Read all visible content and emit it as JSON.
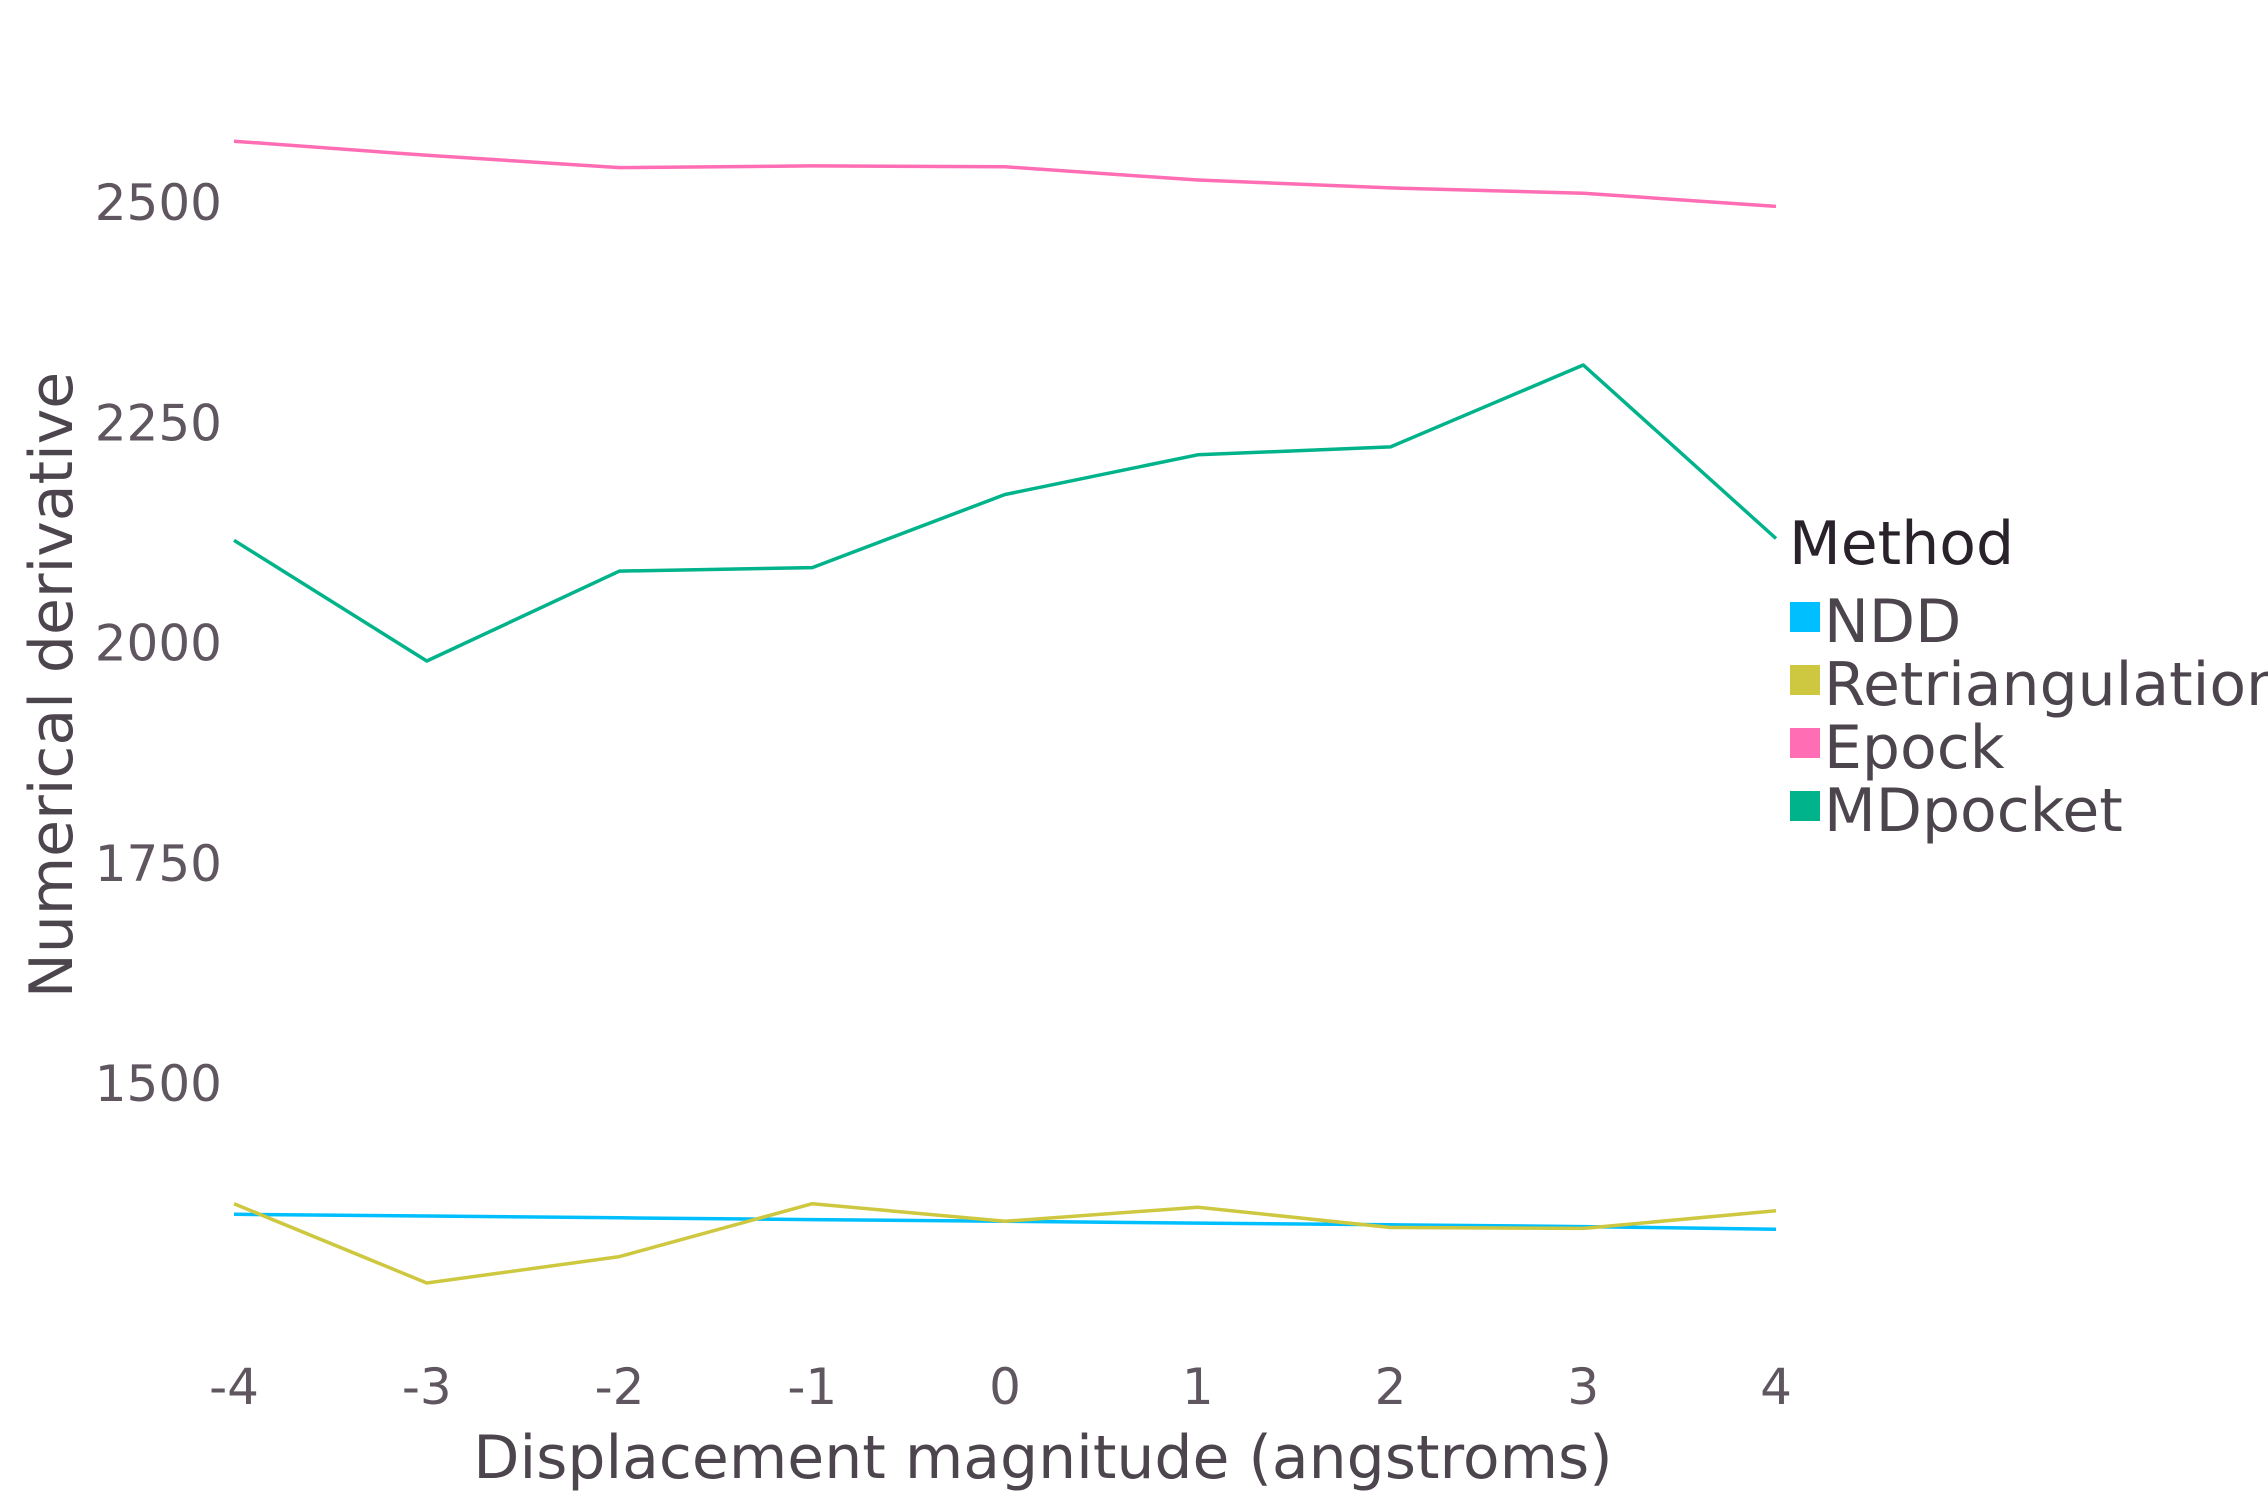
{
  "chart_data": {
    "type": "line",
    "title": "",
    "xlabel": "Displacement magnitude (angstroms)",
    "ylabel": "Numerical derivative",
    "x": [
      -4,
      -3,
      -2,
      -1,
      0,
      1,
      2,
      3,
      4
    ],
    "x_tick_labels": [
      "-4",
      "-3",
      "-2",
      "-1",
      "0",
      "1",
      "2",
      "3",
      "4"
    ],
    "y_ticks": [
      1500,
      1750,
      2000,
      2250,
      2500
    ],
    "y_tick_labels": [
      "1500",
      "1750",
      "2000",
      "2250",
      "2500"
    ],
    "xlim": [
      -4,
      4
    ],
    "ylim": [
      1240,
      2640
    ],
    "grid": false,
    "legend_position": "right",
    "legend_title": "Method",
    "series": [
      {
        "name": "NDD",
        "color": "#00bfff",
        "values": [
          1351,
          1349,
          1347,
          1345,
          1343,
          1341,
          1339,
          1337,
          1334
        ]
      },
      {
        "name": "Retriangulation",
        "color": "#cdc840",
        "values": [
          1363,
          1273,
          1303,
          1363,
          1343,
          1359,
          1336,
          1335,
          1355
        ]
      },
      {
        "name": "Epock",
        "color": "#ff6eb4",
        "values": [
          2569,
          2553,
          2539,
          2541,
          2540,
          2525,
          2516,
          2510,
          2495
        ]
      },
      {
        "name": "MDpocket",
        "color": "#00b38a",
        "values": [
          2116,
          1979,
          2081,
          2085,
          2168,
          2213,
          2222,
          2315,
          2118
        ]
      }
    ]
  }
}
